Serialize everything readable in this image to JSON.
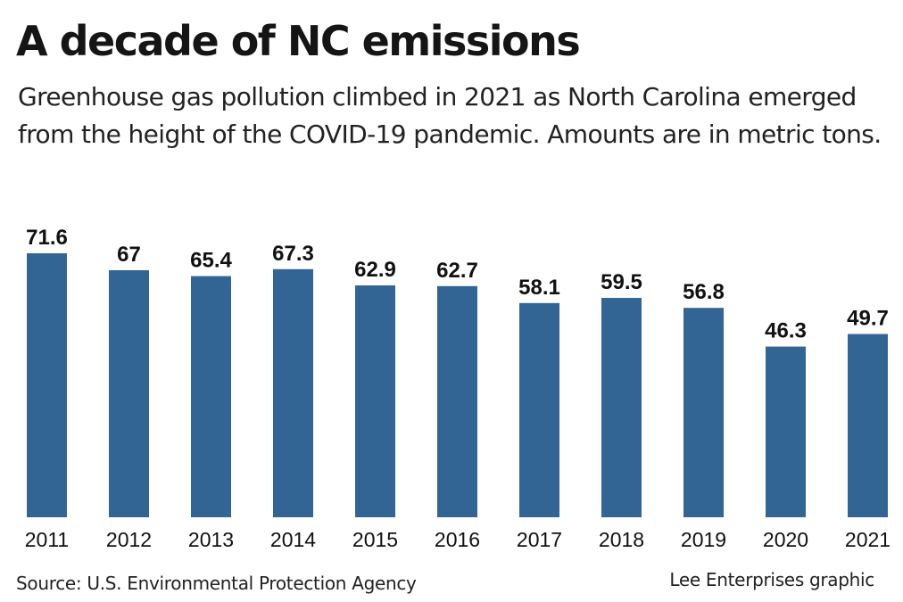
{
  "chart_data": {
    "type": "bar",
    "title": "A decade of NC emissions",
    "subtitle": "Greenhouse gas pollution climbed in 2021 as North Carolina emerged from the height of the COVID-19 pandemic. Amounts are in metric tons.",
    "categories": [
      "2011",
      "2012",
      "2013",
      "2014",
      "2015",
      "2016",
      "2017",
      "2018",
      "2019",
      "2020",
      "2021"
    ],
    "values": [
      71.6,
      67,
      65.4,
      67.3,
      62.9,
      62.7,
      58.1,
      59.5,
      56.8,
      46.3,
      49.7
    ],
    "value_labels": [
      "71.6",
      "67",
      "65.4",
      "67.3",
      "62.9",
      "62.7",
      "58.1",
      "59.5",
      "56.8",
      "46.3",
      "49.7"
    ],
    "xlabel": "",
    "ylabel": "",
    "ylim": [
      0,
      75
    ],
    "grid": false,
    "bar_color": "#336594",
    "source": "Source: U.S. Environmental Protection Agency",
    "credit": "Lee Enterprises graphic"
  }
}
